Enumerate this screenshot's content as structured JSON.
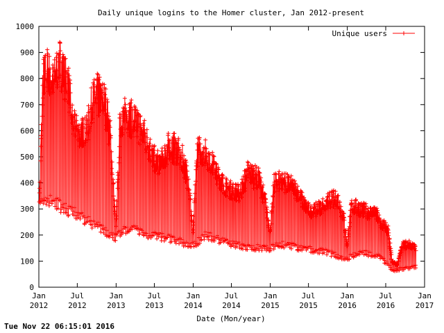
{
  "timestamp": "Tue Nov 22 06:15:01 2016",
  "chart_data": {
    "type": "line",
    "title": "Daily unique logins to the Homer cluster, Jan 2012-present",
    "xlabel": "Date (Mon/year)",
    "ylabel": "",
    "ylim": [
      0,
      1000
    ],
    "yticks": [
      0,
      100,
      200,
      300,
      400,
      500,
      600,
      700,
      800,
      900,
      1000
    ],
    "xlim": [
      "2012-01-01",
      "2017-01-01"
    ],
    "xticks": [
      {
        "date": "2012-01-01",
        "label": [
          "Jan",
          "2012"
        ]
      },
      {
        "date": "2012-07-01",
        "label": [
          "Jul",
          "2012"
        ]
      },
      {
        "date": "2013-01-01",
        "label": [
          "Jan",
          "2013"
        ]
      },
      {
        "date": "2013-07-01",
        "label": [
          "Jul",
          "2013"
        ]
      },
      {
        "date": "2014-01-01",
        "label": [
          "Jan",
          "2014"
        ]
      },
      {
        "date": "2014-07-01",
        "label": [
          "Jul",
          "2014"
        ]
      },
      {
        "date": "2015-01-01",
        "label": [
          "Jan",
          "2015"
        ]
      },
      {
        "date": "2015-07-01",
        "label": [
          "Jul",
          "2015"
        ]
      },
      {
        "date": "2016-01-01",
        "label": [
          "Jan",
          "2016"
        ]
      },
      {
        "date": "2016-07-01",
        "label": [
          "Jul",
          "2016"
        ]
      },
      {
        "date": "2017-01-01",
        "label": [
          "Jan",
          "2017"
        ]
      }
    ],
    "legend": {
      "position": "top-right"
    },
    "series": [
      {
        "name": "Unique users",
        "color": "#ff0000",
        "marker": "plus",
        "weekday_envelope": [
          [
            "2012-01-03",
            330
          ],
          [
            "2012-01-20",
            870
          ],
          [
            "2012-02-10",
            910
          ],
          [
            "2012-03-10",
            850
          ],
          [
            "2012-04-05",
            960
          ],
          [
            "2012-05-01",
            880
          ],
          [
            "2012-05-20",
            850
          ],
          [
            "2012-06-10",
            680
          ],
          [
            "2012-07-10",
            640
          ],
          [
            "2012-08-15",
            650
          ],
          [
            "2012-09-10",
            780
          ],
          [
            "2012-10-05",
            810
          ],
          [
            "2012-11-10",
            780
          ],
          [
            "2012-12-05",
            630
          ],
          [
            "2012-12-31",
            240
          ],
          [
            "2013-01-20",
            720
          ],
          [
            "2013-02-20",
            720
          ],
          [
            "2013-04-01",
            700
          ],
          [
            "2013-05-10",
            650
          ],
          [
            "2013-06-10",
            580
          ],
          [
            "2013-07-10",
            520
          ],
          [
            "2013-08-10",
            530
          ],
          [
            "2013-09-10",
            600
          ],
          [
            "2013-10-10",
            580
          ],
          [
            "2013-11-10",
            540
          ],
          [
            "2013-12-10",
            450
          ],
          [
            "2013-12-31",
            220
          ],
          [
            "2014-01-20",
            570
          ],
          [
            "2014-02-10",
            580
          ],
          [
            "2014-03-10",
            550
          ],
          [
            "2014-04-10",
            500
          ],
          [
            "2014-05-10",
            450
          ],
          [
            "2014-06-10",
            410
          ],
          [
            "2014-07-10",
            400
          ],
          [
            "2014-08-10",
            390
          ],
          [
            "2014-09-15",
            480
          ],
          [
            "2014-10-10",
            470
          ],
          [
            "2014-11-10",
            450
          ],
          [
            "2014-12-10",
            350
          ],
          [
            "2014-12-31",
            220
          ],
          [
            "2015-01-20",
            440
          ],
          [
            "2015-02-20",
            450
          ],
          [
            "2015-03-20",
            430
          ],
          [
            "2015-04-20",
            420
          ],
          [
            "2015-05-20",
            380
          ],
          [
            "2015-06-20",
            330
          ],
          [
            "2015-07-20",
            310
          ],
          [
            "2015-08-20",
            330
          ],
          [
            "2015-09-20",
            350
          ],
          [
            "2015-10-20",
            370
          ],
          [
            "2015-11-20",
            360
          ],
          [
            "2015-12-15",
            290
          ],
          [
            "2015-12-31",
            170
          ],
          [
            "2016-01-20",
            340
          ],
          [
            "2016-02-20",
            330
          ],
          [
            "2016-03-20",
            320
          ],
          [
            "2016-04-20",
            310
          ],
          [
            "2016-05-20",
            300
          ],
          [
            "2016-06-10",
            260
          ],
          [
            "2016-07-10",
            250
          ],
          [
            "2016-08-01",
            100
          ],
          [
            "2016-08-25",
            90
          ],
          [
            "2016-09-15",
            170
          ],
          [
            "2016-10-15",
            180
          ],
          [
            "2016-11-21",
            160
          ]
        ],
        "weekend_envelope": [
          [
            "2012-01-03",
            320
          ],
          [
            "2012-03-01",
            330
          ],
          [
            "2012-06-01",
            290
          ],
          [
            "2012-09-01",
            250
          ],
          [
            "2012-12-31",
            190
          ],
          [
            "2013-03-01",
            230
          ],
          [
            "2013-06-01",
            200
          ],
          [
            "2013-09-01",
            190
          ],
          [
            "2013-12-31",
            160
          ],
          [
            "2014-03-01",
            200
          ],
          [
            "2014-06-01",
            175
          ],
          [
            "2014-09-01",
            155
          ],
          [
            "2014-12-31",
            150
          ],
          [
            "2015-03-01",
            165
          ],
          [
            "2015-06-01",
            150
          ],
          [
            "2015-09-01",
            140
          ],
          [
            "2015-12-31",
            110
          ],
          [
            "2016-03-01",
            135
          ],
          [
            "2016-06-01",
            120
          ],
          [
            "2016-08-01",
            65
          ],
          [
            "2016-09-15",
            70
          ],
          [
            "2016-11-21",
            80
          ]
        ]
      }
    ]
  }
}
